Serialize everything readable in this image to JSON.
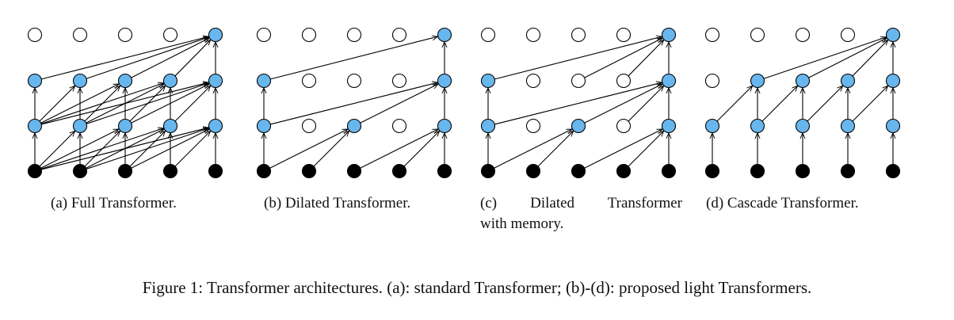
{
  "panels": [
    {
      "label": "(a)  Full Transformer.",
      "kind": "full"
    },
    {
      "label": "(b)  Dilated Transformer.",
      "kind": "dilated"
    },
    {
      "label": "(c)   Dilated    Transformer",
      "label_line2": "with memory.",
      "kind": "dilated-memory"
    },
    {
      "label": "(d)  Cascade Transformer.",
      "kind": "cascade"
    }
  ],
  "figure_caption": "Figure 1: Transformer architectures. (a): standard Transformer; (b)-(d): proposed light Transformers.",
  "colors": {
    "hidden_node": "#68b6ee",
    "input_node": "#000000",
    "empty_node": "#ffffff",
    "edge": "#000000"
  }
}
